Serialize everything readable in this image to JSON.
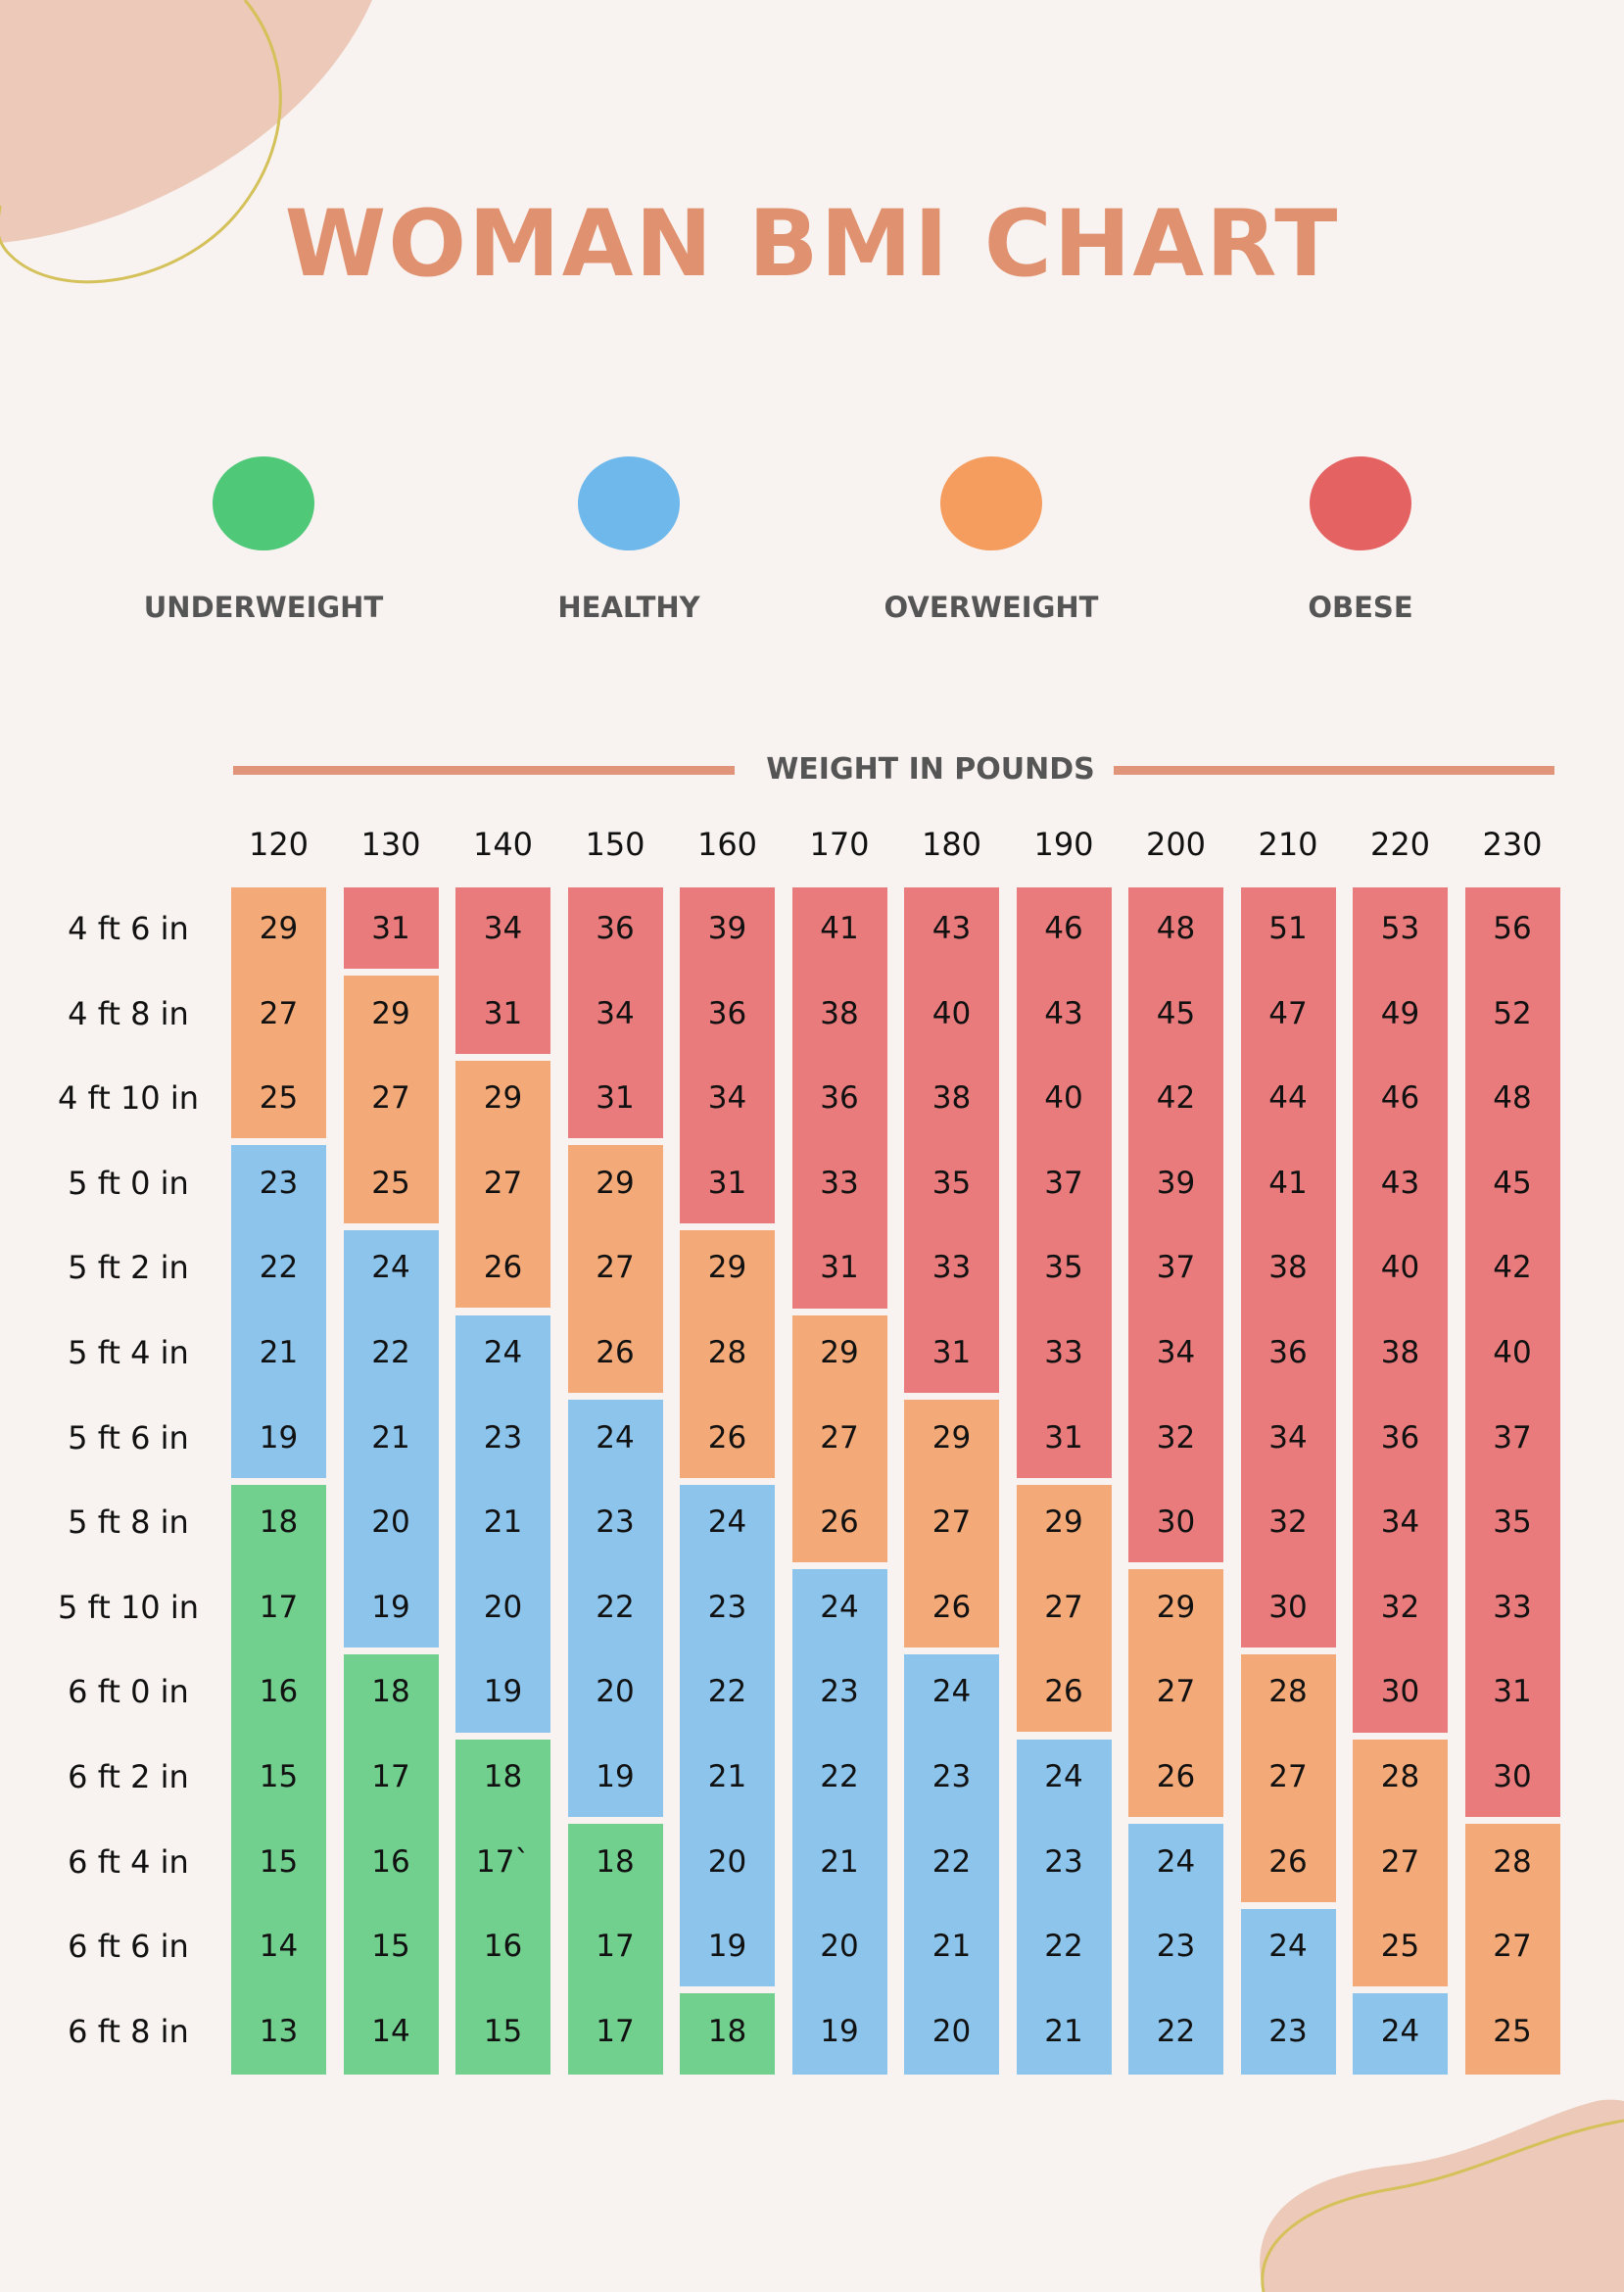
{
  "title": "WOMAN BMI CHART",
  "legend": [
    {
      "key": "under",
      "label": "UNDERWEIGHT",
      "color": "#4fc878"
    },
    {
      "key": "healthy",
      "label": "HEALTHY",
      "color": "#6fb8ec"
    },
    {
      "key": "over",
      "label": "OVERWEIGHT",
      "color": "#f49d5e"
    },
    {
      "key": "obese",
      "label": "OBESE",
      "color": "#e46262"
    }
  ],
  "cell_colors": {
    "under": "#72d08f",
    "healthy": "#8cc4ec",
    "over": "#f4aa78",
    "obese": "#e97b7c"
  },
  "chart_data": {
    "type": "table",
    "title": "WOMAN BMI CHART",
    "xlabel": "WEIGHT IN POUNDS",
    "columns": [
      "120",
      "130",
      "140",
      "150",
      "160",
      "170",
      "180",
      "190",
      "200",
      "210",
      "220",
      "230"
    ],
    "rows": [
      "4 ft 6 in",
      "4 ft 8 in",
      "4 ft 10 in",
      "5 ft 0 in",
      "5 ft 2 in",
      "5 ft 4 in",
      "5 ft 6 in",
      "5 ft 8 in",
      "5 ft 10 in",
      "6 ft 0 in",
      "6 ft 2 in",
      "6 ft 4 in",
      "6 ft 6 in",
      "6 ft 8 in"
    ],
    "values_by_column": [
      [
        "29",
        "27",
        "25",
        "23",
        "22",
        "21",
        "19",
        "18",
        "17",
        "16",
        "15",
        "15",
        "14",
        "13"
      ],
      [
        "31",
        "29",
        "27",
        "25",
        "24",
        "22",
        "21",
        "20",
        "19",
        "18",
        "17",
        "16",
        "15",
        "14"
      ],
      [
        "34",
        "31",
        "29",
        "27",
        "26",
        "24",
        "23",
        "21",
        "20",
        "19",
        "18",
        "17`",
        "16",
        "15"
      ],
      [
        "36",
        "34",
        "31",
        "29",
        "27",
        "26",
        "24",
        "23",
        "22",
        "20",
        "19",
        "18",
        "17",
        "17"
      ],
      [
        "39",
        "36",
        "34",
        "31",
        "29",
        "28",
        "26",
        "24",
        "23",
        "22",
        "21",
        "20",
        "19",
        "18"
      ],
      [
        "41",
        "38",
        "36",
        "33",
        "31",
        "29",
        "27",
        "26",
        "24",
        "23",
        "22",
        "21",
        "20",
        "19"
      ],
      [
        "43",
        "40",
        "38",
        "35",
        "33",
        "31",
        "29",
        "27",
        "26",
        "24",
        "23",
        "22",
        "21",
        "20"
      ],
      [
        "46",
        "43",
        "40",
        "37",
        "35",
        "33",
        "31",
        "29",
        "27",
        "26",
        "24",
        "23",
        "22",
        "21"
      ],
      [
        "48",
        "45",
        "42",
        "39",
        "37",
        "34",
        "32",
        "30",
        "29",
        "27",
        "26",
        "24",
        "23",
        "22"
      ],
      [
        "51",
        "47",
        "44",
        "41",
        "38",
        "36",
        "34",
        "32",
        "30",
        "28",
        "27",
        "26",
        "24",
        "23"
      ],
      [
        "53",
        "49",
        "46",
        "43",
        "40",
        "38",
        "36",
        "34",
        "32",
        "30",
        "28",
        "27",
        "25",
        "24"
      ],
      [
        "56",
        "52",
        "48",
        "45",
        "42",
        "40",
        "37",
        "35",
        "33",
        "31",
        "30",
        "28",
        "27",
        "25"
      ]
    ],
    "category_runs_by_column": [
      [
        [
          "over",
          3
        ],
        [
          "healthy",
          4
        ],
        [
          "under",
          7
        ]
      ],
      [
        [
          "obese",
          1
        ],
        [
          "over",
          3
        ],
        [
          "healthy",
          5
        ],
        [
          "under",
          5
        ]
      ],
      [
        [
          "obese",
          2
        ],
        [
          "over",
          3
        ],
        [
          "healthy",
          5
        ],
        [
          "under",
          4
        ]
      ],
      [
        [
          "obese",
          3
        ],
        [
          "over",
          3
        ],
        [
          "healthy",
          5
        ],
        [
          "under",
          3
        ]
      ],
      [
        [
          "obese",
          4
        ],
        [
          "over",
          3
        ],
        [
          "healthy",
          6
        ],
        [
          "under",
          1
        ]
      ],
      [
        [
          "obese",
          5
        ],
        [
          "over",
          3
        ],
        [
          "healthy",
          6
        ]
      ],
      [
        [
          "obese",
          6
        ],
        [
          "over",
          3
        ],
        [
          "healthy",
          5
        ]
      ],
      [
        [
          "obese",
          7
        ],
        [
          "over",
          3
        ],
        [
          "healthy",
          4
        ]
      ],
      [
        [
          "obese",
          8
        ],
        [
          "over",
          3
        ],
        [
          "healthy",
          3
        ]
      ],
      [
        [
          "obese",
          9
        ],
        [
          "over",
          3
        ],
        [
          "healthy",
          2
        ]
      ],
      [
        [
          "obese",
          10
        ],
        [
          "over",
          3
        ],
        [
          "healthy",
          1
        ]
      ],
      [
        [
          "obese",
          11
        ],
        [
          "over",
          3
        ]
      ]
    ]
  }
}
